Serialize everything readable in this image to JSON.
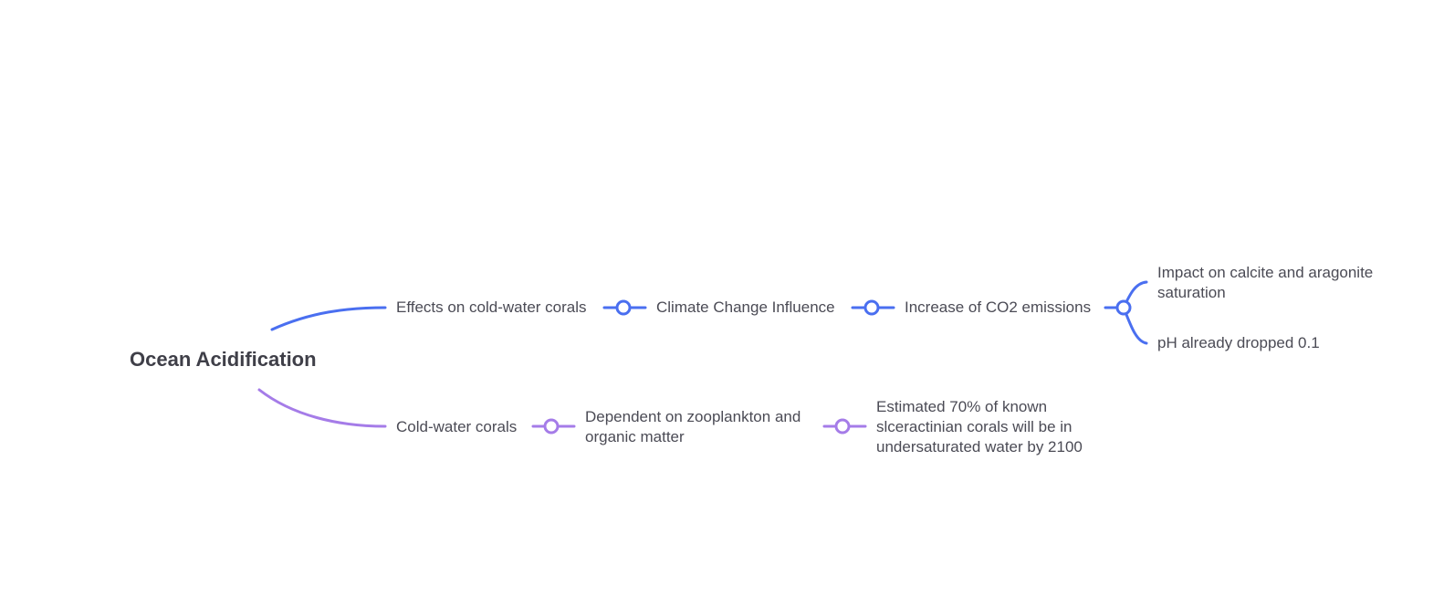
{
  "root": {
    "label": "Ocean Acidification"
  },
  "colors": {
    "branch_blue": "#4a6ff0",
    "branch_purple": "#a57ce8",
    "text": "#4b4b55",
    "root_text": "#3f3f48"
  },
  "branches": [
    {
      "color": "blue",
      "nodes": [
        {
          "label": "Effects on cold-water corals"
        },
        {
          "label": "Climate Change Influence"
        },
        {
          "label": "Increase of CO2 emissions"
        }
      ],
      "leaves": [
        {
          "label": "Impact on calcite and aragonite saturation"
        },
        {
          "label": "pH already dropped 0.1"
        }
      ]
    },
    {
      "color": "purple",
      "nodes": [
        {
          "label": "Cold-water corals"
        },
        {
          "label": "Dependent on zooplankton and organic matter"
        },
        {
          "label": "Estimated 70% of known slceractinian corals will be in undersaturated water by 2100"
        }
      ]
    }
  ]
}
